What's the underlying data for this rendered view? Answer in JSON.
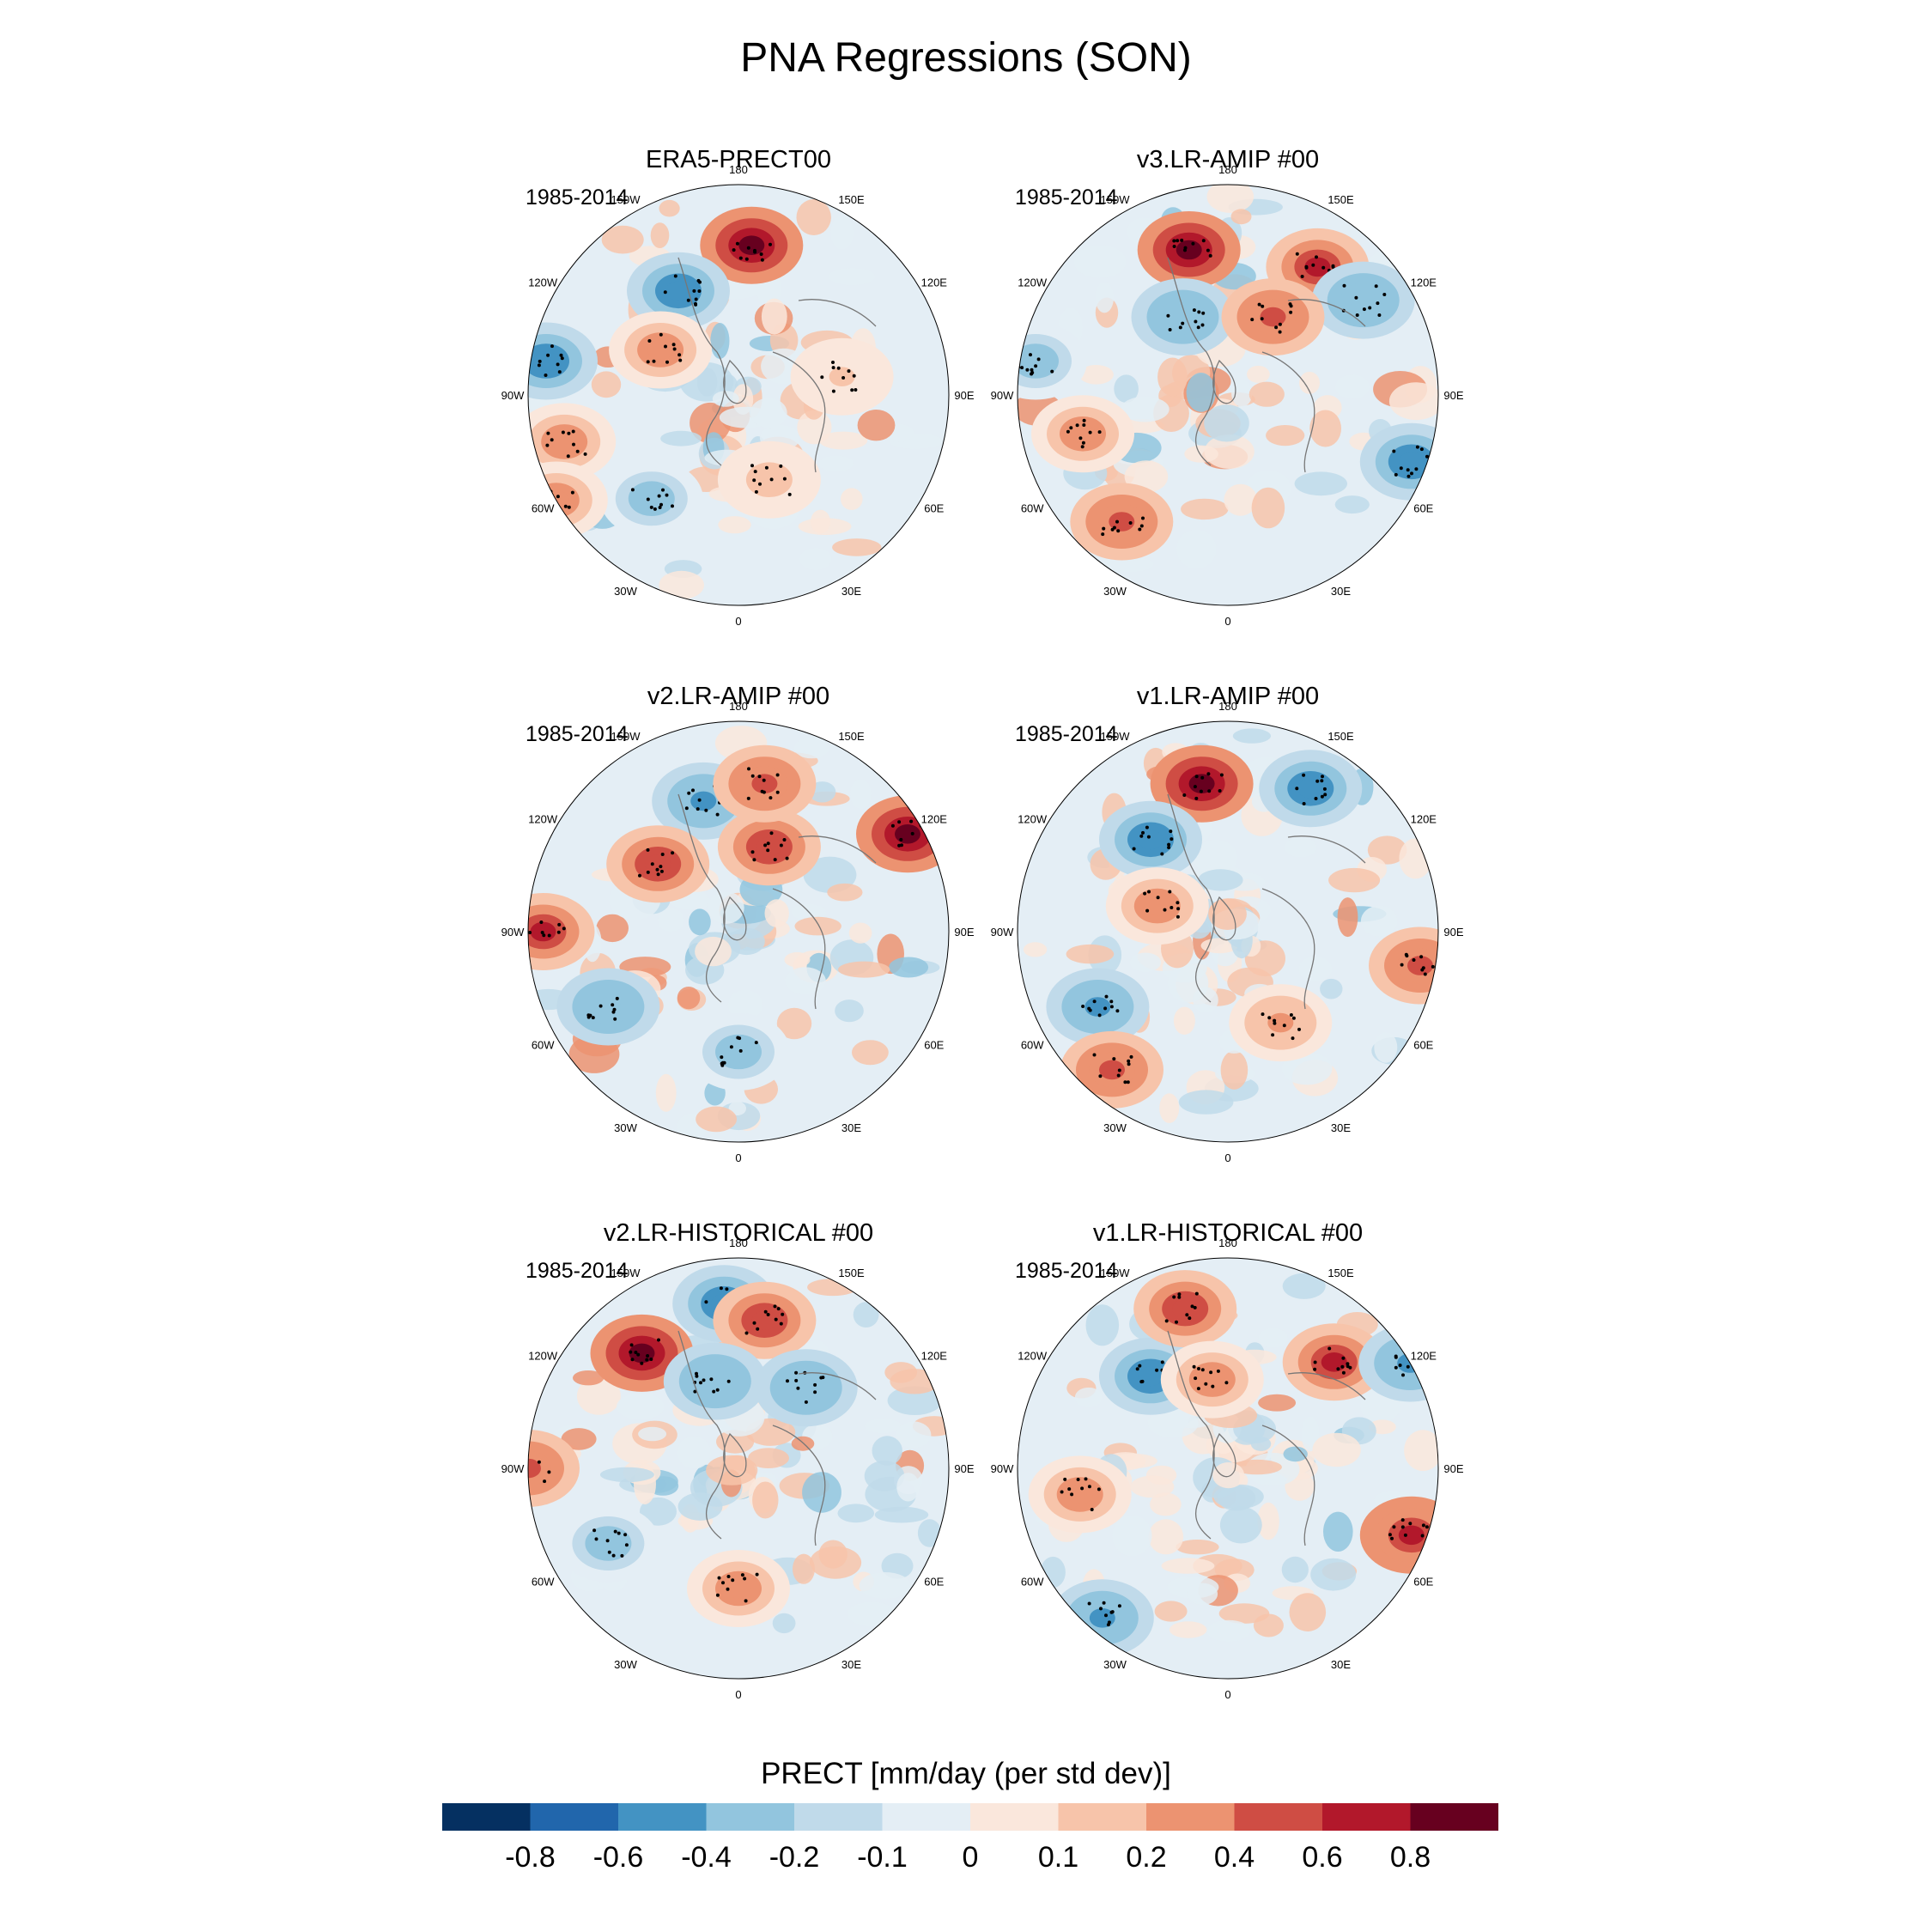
{
  "title": "PNA Regressions (SON)",
  "panels": [
    {
      "name": "ERA5-PRECT00",
      "years": "1985-2014"
    },
    {
      "name": "v3.LR-AMIP  #00",
      "years": "1985-2014"
    },
    {
      "name": "v2.LR-AMIP  #00",
      "years": "1985-2014"
    },
    {
      "name": "v1.LR-AMIP  #00",
      "years": "1985-2014"
    },
    {
      "name": "v2.LR-HISTORICAL  #00",
      "years": "1985-2014"
    },
    {
      "name": "v1.LR-HISTORICAL  #00",
      "years": "1985-2014"
    }
  ],
  "lon_labels": [
    "180",
    "150E",
    "120E",
    "90E",
    "60E",
    "30E",
    "0",
    "30W",
    "60W",
    "90W",
    "120W",
    "150W"
  ],
  "colorbar": {
    "title": "PRECT [mm/day (per std dev)]",
    "ticks": [
      "-0.8",
      "-0.6",
      "-0.4",
      "-0.2",
      "-0.1",
      "0",
      "0.1",
      "0.2",
      "0.4",
      "0.6",
      "0.8"
    ],
    "colors": [
      "#053061",
      "#2166ac",
      "#4393c3",
      "#92c5de",
      "#c0daea",
      "#e4eef5",
      "#fae7dc",
      "#f7c4aa",
      "#ec9371",
      "#cf4d44",
      "#b2182b",
      "#67001f"
    ]
  },
  "chart_data": {
    "type": "heatmap",
    "title": "PNA Regressions (SON)",
    "projection": "north-polar-stereographic",
    "variable": "PRECT [mm/day (per std dev)]",
    "levels": [
      -0.8,
      -0.6,
      -0.4,
      -0.2,
      -0.1,
      0,
      0.1,
      0.2,
      0.4,
      0.6,
      0.8
    ],
    "panels": [
      {
        "name": "ERA5-PRECT00",
        "period": "1985-2014",
        "features": [
          {
            "lon": 175,
            "lat": 40,
            "value": 0.8
          },
          {
            "lon": -150,
            "lat": 50,
            "value": -0.6
          },
          {
            "lon": -100,
            "lat": 25,
            "value": -0.6
          },
          {
            "lon": -75,
            "lat": 30,
            "value": 0.3
          },
          {
            "lon": -40,
            "lat": 45,
            "value": -0.3
          },
          {
            "lon": 20,
            "lat": 60,
            "value": 0.15
          },
          {
            "lon": 100,
            "lat": 55,
            "value": 0.1
          },
          {
            "lon": -120,
            "lat": 60,
            "value": 0.3
          },
          {
            "lon": -60,
            "lat": 20,
            "value": 0.3
          }
        ]
      },
      {
        "name": "v3.LR-AMIP  #00",
        "period": "1985-2014",
        "features": [
          {
            "lon": -165,
            "lat": 40,
            "value": 0.8
          },
          {
            "lon": 145,
            "lat": 38,
            "value": 0.6
          },
          {
            "lon": -150,
            "lat": 60,
            "value": -0.4
          },
          {
            "lon": 125,
            "lat": 35,
            "value": -0.4
          },
          {
            "lon": 70,
            "lat": 25,
            "value": -0.6
          },
          {
            "lon": -100,
            "lat": 25,
            "value": -0.3
          },
          {
            "lon": -40,
            "lat": 35,
            "value": 0.4
          },
          {
            "lon": -75,
            "lat": 40,
            "value": 0.3
          },
          {
            "lon": 150,
            "lat": 60,
            "value": 0.4
          }
        ]
      },
      {
        "name": "v2.LR-AMIP  #00",
        "period": "1985-2014",
        "features": [
          {
            "lon": -165,
            "lat": 45,
            "value": -0.5
          },
          {
            "lon": 120,
            "lat": 25,
            "value": 0.8
          },
          {
            "lon": 160,
            "lat": 60,
            "value": 0.5
          },
          {
            "lon": -130,
            "lat": 55,
            "value": 0.5
          },
          {
            "lon": -90,
            "lat": 25,
            "value": 0.6
          },
          {
            "lon": -60,
            "lat": 40,
            "value": -0.4
          },
          {
            "lon": 0,
            "lat": 50,
            "value": -0.3
          },
          {
            "lon": 170,
            "lat": 40,
            "value": 0.4
          }
        ]
      },
      {
        "name": "v1.LR-AMIP  #00",
        "period": "1985-2014",
        "features": [
          {
            "lon": -170,
            "lat": 40,
            "value": 0.8
          },
          {
            "lon": -140,
            "lat": 50,
            "value": -0.6
          },
          {
            "lon": 150,
            "lat": 35,
            "value": -0.6
          },
          {
            "lon": -60,
            "lat": 40,
            "value": -0.5
          },
          {
            "lon": -40,
            "lat": 30,
            "value": 0.4
          },
          {
            "lon": -110,
            "lat": 65,
            "value": 0.3
          },
          {
            "lon": 80,
            "lat": 25,
            "value": 0.4
          },
          {
            "lon": 30,
            "lat": 55,
            "value": 0.2
          }
        ]
      },
      {
        "name": "v2.LR-HISTORICAL  #00",
        "period": "1985-2014",
        "features": [
          {
            "lon": -175,
            "lat": 35,
            "value": -0.6
          },
          {
            "lon": -140,
            "lat": 40,
            "value": 0.8
          },
          {
            "lon": 170,
            "lat": 40,
            "value": 0.5
          },
          {
            "lon": -165,
            "lat": 60,
            "value": -0.4
          },
          {
            "lon": 140,
            "lat": 55,
            "value": -0.4
          },
          {
            "lon": -90,
            "lat": 20,
            "value": 0.4
          },
          {
            "lon": -60,
            "lat": 40,
            "value": -0.3
          },
          {
            "lon": 0,
            "lat": 50,
            "value": 0.3
          }
        ]
      },
      {
        "name": "v1.LR-HISTORICAL  #00",
        "period": "1985-2014",
        "features": [
          {
            "lon": -140,
            "lat": 50,
            "value": -0.6
          },
          {
            "lon": -165,
            "lat": 35,
            "value": 0.5
          },
          {
            "lon": 135,
            "lat": 40,
            "value": 0.6
          },
          {
            "lon": 70,
            "lat": 25,
            "value": 0.7
          },
          {
            "lon": -40,
            "lat": 25,
            "value": -0.5
          },
          {
            "lon": -80,
            "lat": 40,
            "value": 0.3
          },
          {
            "lon": 120,
            "lat": 20,
            "value": -0.5
          },
          {
            "lon": -170,
            "lat": 60,
            "value": 0.3
          }
        ]
      }
    ]
  }
}
